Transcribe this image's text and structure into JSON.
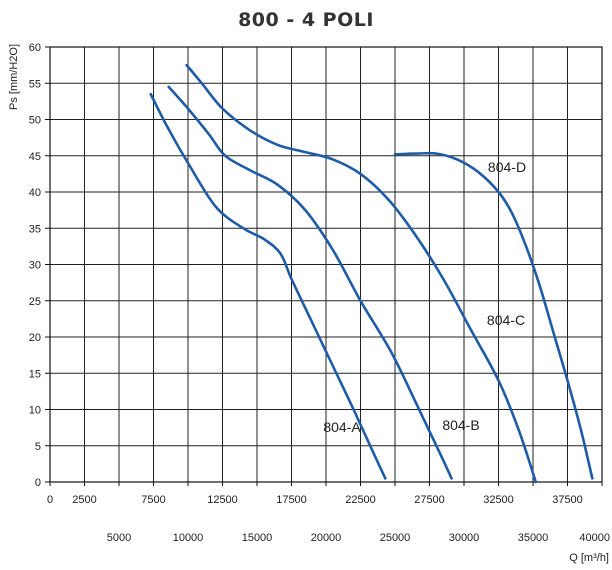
{
  "chart_data": {
    "type": "line",
    "title": "800 - 4 POLI",
    "xlabel": "Q [m³/h]",
    "ylabel": "Ps [mm/H2O]",
    "xlim": [
      0,
      40000
    ],
    "ylim": [
      0,
      60
    ],
    "grid": true,
    "x_ticks_upper": [
      "0",
      "2500",
      "7500",
      "12500",
      "17500",
      "22500",
      "27500",
      "32500",
      "37500"
    ],
    "x_ticks_lower": [
      "5000",
      "10000",
      "15000",
      "20000",
      "25000",
      "30000",
      "35000",
      "40000"
    ],
    "y_ticks": [
      "0",
      "5",
      "10",
      "15",
      "20",
      "25",
      "30",
      "35",
      "40",
      "45",
      "50",
      "55",
      "60"
    ],
    "series": [
      {
        "name": "804-A",
        "color": "#1f5ca8",
        "x": [
          7300,
          8500,
          10000,
          12000,
          14000,
          15500,
          16700,
          17500,
          19000,
          20500,
          22000,
          23200,
          24300
        ],
        "y": [
          53.5,
          49,
          44,
          38,
          35,
          33.5,
          31.5,
          28,
          22,
          16,
          10,
          5,
          0.5
        ]
      },
      {
        "name": "804-B",
        "color": "#1f5ca8",
        "x": [
          8600,
          10000,
          11500,
          12700,
          14500,
          16500,
          18500,
          20500,
          22500,
          24700,
          26500,
          28000,
          29100
        ],
        "y": [
          54.5,
          51.5,
          48,
          45,
          43,
          41,
          37.5,
          32,
          25,
          18,
          11,
          5,
          0.5
        ]
      },
      {
        "name": "804-C",
        "color": "#1f5ca8",
        "x": [
          9900,
          11000,
          12500,
          14500,
          16500,
          18500,
          20500,
          22500,
          24500,
          26500,
          28500,
          30500,
          32500,
          34000,
          35200
        ],
        "y": [
          57.5,
          55,
          51.5,
          48.5,
          46.5,
          45.5,
          44.5,
          42.5,
          39,
          34,
          28,
          21,
          14,
          7,
          0
        ]
      },
      {
        "name": "804-D",
        "color": "#1f5ca8",
        "x": [
          25000,
          26500,
          28000,
          29500,
          31000,
          32500,
          33500,
          34500,
          35500,
          36500,
          37500,
          38500,
          39300
        ],
        "y": [
          45.2,
          45.3,
          45.3,
          44.5,
          42.8,
          40,
          37,
          32.5,
          27,
          20.5,
          14,
          7,
          0.5
        ]
      }
    ],
    "annotations": [
      "804-A",
      "804-B",
      "804-C",
      "804-D"
    ]
  }
}
